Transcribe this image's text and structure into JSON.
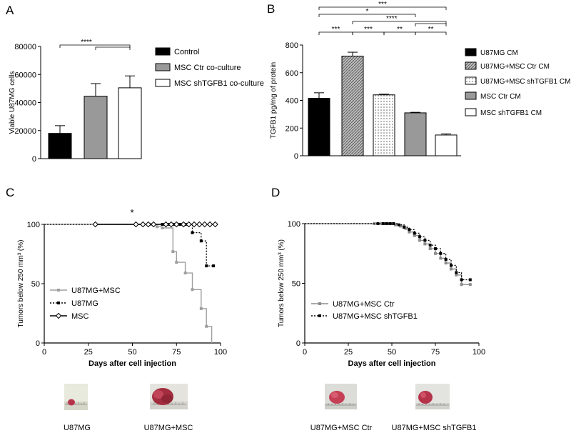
{
  "panel_letters": {
    "a": "A",
    "b": "B",
    "c": "C",
    "d": "D"
  },
  "photo_labels": {
    "c_left": "U87MG",
    "c_right": "U87MG+MSC",
    "d_left": "U87MG+MSC Ctr",
    "d_right": "U87MG+MSC shTGFB1"
  },
  "colors": {
    "black": "#000000",
    "gray": "#9e9e9e",
    "dark_gray": "#8c8c8c",
    "tumor": "#c0394f"
  },
  "chart_data": [
    {
      "type": "bar",
      "panel": "A",
      "categories": [
        "Control",
        "MSC Ctr co-culture",
        "MSC shTGFB1 co-culture"
      ],
      "values": [
        18000,
        44500,
        50500
      ],
      "errors": [
        5500,
        9000,
        8500
      ],
      "fills": [
        "#000000",
        "#999999",
        "#ffffff"
      ],
      "ylabel": "Viable U87MG cells",
      "ylim": [
        0,
        80000
      ],
      "yticks": [
        0,
        20000,
        40000,
        60000,
        80000
      ],
      "ytick_labels": [
        "0",
        "20000",
        "40000",
        "60000",
        "80000"
      ],
      "legend": [
        "Control",
        "MSC Ctr co-culture",
        "MSC shTGFB1 co-culture"
      ],
      "legend_position": "right",
      "significance": [
        {
          "label": "****",
          "from": 0,
          "to": [
            1,
            2
          ]
        }
      ]
    },
    {
      "type": "bar",
      "panel": "B",
      "categories": [
        "U87MG CM",
        "U87MG+MSC Ctr CM",
        "U87MG+MSC shTGFB1 CM",
        "MSC Ctr CM",
        "MSC shTGFB1 CM"
      ],
      "values": [
        415,
        720,
        440,
        310,
        150
      ],
      "errors": [
        40,
        28,
        5,
        4,
        8
      ],
      "fills": [
        "black",
        "hatch",
        "dots",
        "gray",
        "white"
      ],
      "ylabel": "TGFB1 pg/mg of protein",
      "ylim": [
        0,
        800
      ],
      "yticks": [
        0,
        200,
        400,
        600,
        800
      ],
      "ytick_labels": [
        "0",
        "200",
        "400",
        "600",
        "800"
      ],
      "legend": [
        "U87MG CM",
        "U87MG+MSC Ctr CM",
        "U87MG+MSC shTGFB1 CM",
        "MSC Ctr CM",
        "MSC shTGFB1 CM"
      ],
      "legend_position": "right",
      "significance": [
        {
          "label": "***",
          "from": 0,
          "to": 4
        },
        {
          "label": "*",
          "from": 0,
          "to": 3
        },
        {
          "label": "****",
          "from": 1,
          "to": [
            3,
            4
          ]
        },
        {
          "label": "***",
          "from": 0,
          "to": 1
        },
        {
          "label": "***",
          "from": 1,
          "to": 2
        },
        {
          "label": "**",
          "from": 2,
          "to": 3
        },
        {
          "label": "**",
          "from": 3,
          "to": 4
        }
      ]
    },
    {
      "type": "line",
      "subtype": "survival-step",
      "panel": "C",
      "xlabel": "Days after cell injection",
      "ylabel": "Tumors below 250 mm³ (%)",
      "xlim": [
        0,
        100
      ],
      "ylim": [
        0,
        100
      ],
      "xticks": [
        0,
        25,
        50,
        75,
        100
      ],
      "xtick_labels": [
        "0",
        "25",
        "50",
        "75",
        "100"
      ],
      "yticks": [
        0,
        50,
        100
      ],
      "ytick_labels": [
        "0",
        "50",
        "100"
      ],
      "annotation": "*",
      "legend_position": "bottom-left",
      "series": [
        {
          "name": "U87MG+MSC",
          "color": "#9e9e9e",
          "dash": "solid",
          "marker": "square",
          "steps": [
            [
              0,
              100
            ],
            [
              64,
              100
            ],
            [
              64,
              98
            ],
            [
              67,
              98
            ],
            [
              67,
              97
            ],
            [
              73,
              97
            ],
            [
              73,
              77
            ],
            [
              75,
              77
            ],
            [
              75,
              68
            ],
            [
              80,
              68
            ],
            [
              80,
              59
            ],
            [
              84,
              59
            ],
            [
              84,
              45
            ],
            [
              89,
              45
            ],
            [
              89,
              29
            ],
            [
              92,
              29
            ],
            [
              92,
              14
            ],
            [
              95,
              14
            ],
            [
              95,
              0
            ]
          ],
          "censor": [
            [
              60,
              100
            ],
            [
              62,
              100
            ],
            [
              64,
              98
            ],
            [
              67,
              97
            ],
            [
              73,
              77
            ],
            [
              75,
              68
            ],
            [
              80,
              59
            ],
            [
              84,
              45
            ],
            [
              89,
              29
            ],
            [
              92,
              14
            ]
          ]
        },
        {
          "name": "U87MG",
          "color": "#000000",
          "dash": "dotted",
          "marker": "square",
          "steps": [
            [
              0,
              100
            ],
            [
              84,
              100
            ],
            [
              84,
              93
            ],
            [
              89,
              93
            ],
            [
              89,
              86
            ],
            [
              92,
              86
            ],
            [
              92,
              65
            ],
            [
              96,
              65
            ]
          ],
          "censor": [
            [
              67,
              100
            ],
            [
              69,
              100
            ],
            [
              71,
              100
            ],
            [
              74,
              100
            ],
            [
              77,
              100
            ],
            [
              80,
              100
            ],
            [
              84,
              93
            ],
            [
              89,
              86
            ],
            [
              92,
              65
            ],
            [
              96,
              65
            ]
          ]
        },
        {
          "name": "MSC",
          "color": "#000000",
          "dash": "solid",
          "marker": "diamond",
          "steps": [
            [
              29,
              100
            ],
            [
              97,
              100
            ]
          ],
          "censor": [
            [
              29,
              100
            ],
            [
              52,
              100
            ],
            [
              56,
              100
            ],
            [
              59,
              100
            ],
            [
              62,
              100
            ],
            [
              69,
              100
            ],
            [
              72,
              100
            ],
            [
              75,
              100
            ],
            [
              79,
              100
            ],
            [
              82,
              100
            ],
            [
              85,
              100
            ],
            [
              88,
              100
            ],
            [
              91,
              100
            ],
            [
              94,
              100
            ],
            [
              97,
              100
            ]
          ]
        }
      ]
    },
    {
      "type": "line",
      "subtype": "survival-step",
      "panel": "D",
      "xlabel": "Days after cell injection",
      "ylabel": "Tumors below 250 mm³ (%)",
      "xlim": [
        0,
        100
      ],
      "ylim": [
        0,
        100
      ],
      "xticks": [
        0,
        25,
        50,
        75,
        100
      ],
      "xtick_labels": [
        "0",
        "25",
        "50",
        "75",
        "100"
      ],
      "yticks": [
        0,
        50,
        100
      ],
      "ytick_labels": [
        "0",
        "50",
        "100"
      ],
      "legend_position": "middle-left",
      "series": [
        {
          "name": "U87MG+MSC Ctr",
          "color": "#8c8c8c",
          "dash": "solid",
          "marker": "square",
          "steps": [
            [
              0,
              100
            ],
            [
              52,
              100
            ],
            [
              52,
              99
            ],
            [
              55,
              99
            ],
            [
              55,
              98
            ],
            [
              58,
              98
            ],
            [
              58,
              96
            ],
            [
              60,
              96
            ],
            [
              60,
              93
            ],
            [
              63,
              93
            ],
            [
              63,
              90
            ],
            [
              66,
              90
            ],
            [
              66,
              86
            ],
            [
              69,
              86
            ],
            [
              69,
              83
            ],
            [
              72,
              83
            ],
            [
              72,
              79
            ],
            [
              75,
              79
            ],
            [
              75,
              75
            ],
            [
              78,
              75
            ],
            [
              78,
              71
            ],
            [
              81,
              71
            ],
            [
              81,
              67
            ],
            [
              84,
              67
            ],
            [
              84,
              62
            ],
            [
              87,
              62
            ],
            [
              87,
              57
            ],
            [
              90,
              57
            ],
            [
              90,
              49
            ],
            [
              95,
              49
            ]
          ],
          "censor": [
            [
              40,
              100
            ],
            [
              44,
              100
            ],
            [
              46,
              100
            ],
            [
              48,
              100
            ],
            [
              50,
              100
            ],
            [
              52,
              99
            ],
            [
              55,
              98
            ],
            [
              58,
              96
            ],
            [
              60,
              93
            ],
            [
              63,
              90
            ],
            [
              66,
              86
            ],
            [
              69,
              83
            ],
            [
              72,
              79
            ],
            [
              75,
              75
            ],
            [
              78,
              71
            ],
            [
              81,
              67
            ],
            [
              84,
              62
            ],
            [
              87,
              57
            ],
            [
              90,
              49
            ],
            [
              95,
              49
            ]
          ]
        },
        {
          "name": "U87MG+MSC shTGFB1",
          "color": "#000000",
          "dash": "dotted",
          "marker": "square",
          "steps": [
            [
              0,
              100
            ],
            [
              54,
              100
            ],
            [
              54,
              99
            ],
            [
              57,
              99
            ],
            [
              57,
              97
            ],
            [
              60,
              97
            ],
            [
              60,
              95
            ],
            [
              63,
              95
            ],
            [
              63,
              92
            ],
            [
              66,
              92
            ],
            [
              66,
              89
            ],
            [
              69,
              89
            ],
            [
              69,
              86
            ],
            [
              72,
              86
            ],
            [
              72,
              82
            ],
            [
              75,
              82
            ],
            [
              75,
              79
            ],
            [
              78,
              79
            ],
            [
              78,
              75
            ],
            [
              81,
              75
            ],
            [
              81,
              70
            ],
            [
              84,
              70
            ],
            [
              84,
              65
            ],
            [
              87,
              65
            ],
            [
              87,
              59
            ],
            [
              90,
              59
            ],
            [
              90,
              53
            ],
            [
              95,
              53
            ]
          ],
          "censor": [
            [
              42,
              100
            ],
            [
              45,
              100
            ],
            [
              47,
              100
            ],
            [
              49,
              100
            ],
            [
              51,
              100
            ],
            [
              54,
              99
            ],
            [
              57,
              97
            ],
            [
              60,
              95
            ],
            [
              63,
              92
            ],
            [
              66,
              89
            ],
            [
              69,
              86
            ],
            [
              72,
              82
            ],
            [
              75,
              79
            ],
            [
              78,
              75
            ],
            [
              81,
              70
            ],
            [
              84,
              65
            ],
            [
              87,
              59
            ],
            [
              90,
              53
            ],
            [
              95,
              53
            ]
          ]
        }
      ]
    }
  ]
}
